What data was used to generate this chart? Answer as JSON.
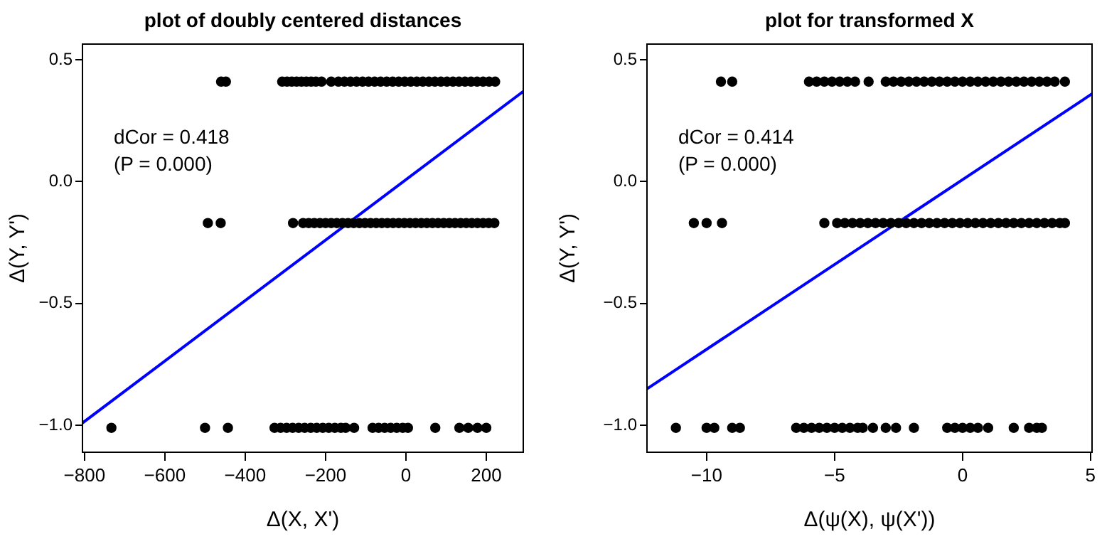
{
  "chart_data": [
    {
      "type": "scatter",
      "title": "plot of doubly centered distances",
      "xlabel": "Δ(X, X')",
      "ylabel": "Δ(Y, Y')",
      "marker": "circle",
      "annotations": [
        "dCor = 0.418",
        "(P = 0.000)"
      ],
      "xlim": [
        -805,
        292
      ],
      "ylim": [
        -1.11,
        0.564
      ],
      "xticks": [
        {
          "value": -800,
          "label": "−800"
        },
        {
          "value": -600,
          "label": "−600"
        },
        {
          "value": -400,
          "label": "−400"
        },
        {
          "value": -200,
          "label": "−200"
        },
        0,
        200
      ],
      "yticks": [
        {
          "value": -1,
          "label": "−1.0"
        },
        {
          "value": -0.5,
          "label": "−0.5"
        },
        {
          "value": 0,
          "label": "0.0"
        },
        0.5
      ],
      "series": [
        {
          "color": "#000000",
          "x": [
            -460,
            -448,
            -308,
            -296,
            -284,
            -272,
            -260,
            -248,
            -236,
            -224,
            -210,
            -186,
            -168,
            -153,
            -138,
            -123,
            -108,
            -93,
            -78,
            -63,
            -48,
            -33,
            -18,
            -3,
            12,
            27,
            42,
            57,
            72,
            87,
            102,
            117,
            132,
            147,
            162,
            177,
            192,
            207,
            222
          ],
          "values": [
            0.41,
            0.41,
            0.41,
            0.41,
            0.41,
            0.41,
            0.41,
            0.41,
            0.41,
            0.41,
            0.41,
            0.41,
            0.41,
            0.41,
            0.41,
            0.41,
            0.41,
            0.41,
            0.41,
            0.41,
            0.41,
            0.41,
            0.41,
            0.41,
            0.41,
            0.41,
            0.41,
            0.41,
            0.41,
            0.41,
            0.41,
            0.41,
            0.41,
            0.41,
            0.41,
            0.41,
            0.41,
            0.41,
            0.41
          ]
        },
        {
          "color": "#000000",
          "x": [
            -493,
            -461,
            -281,
            -256,
            -242,
            -228,
            -214,
            -200,
            -186,
            -172,
            -158,
            -144,
            -130,
            -116,
            -102,
            -88,
            -74,
            -60,
            -46,
            -32,
            -18,
            -4,
            10,
            24,
            38,
            52,
            66,
            80,
            94,
            108,
            122,
            136,
            150,
            164,
            178,
            192,
            206,
            220
          ],
          "values": [
            -0.17,
            -0.17,
            -0.17,
            -0.17,
            -0.17,
            -0.17,
            -0.17,
            -0.17,
            -0.17,
            -0.17,
            -0.17,
            -0.17,
            -0.17,
            -0.17,
            -0.17,
            -0.17,
            -0.17,
            -0.17,
            -0.17,
            -0.17,
            -0.17,
            -0.17,
            -0.17,
            -0.17,
            -0.17,
            -0.17,
            -0.17,
            -0.17,
            -0.17,
            -0.17,
            -0.17,
            -0.17,
            -0.17,
            -0.17,
            -0.17,
            -0.17,
            -0.17,
            -0.17
          ]
        },
        {
          "color": "#000000",
          "x": [
            -733,
            -500,
            -443,
            -327,
            -312,
            -297,
            -282,
            -267,
            -252,
            -237,
            -222,
            -207,
            -192,
            -177,
            -162,
            -150,
            -129,
            -83,
            -68,
            -53,
            -38,
            -23,
            -8,
            5,
            73,
            133,
            155,
            178,
            200
          ],
          "values": [
            -1.01,
            -1.01,
            -1.01,
            -1.01,
            -1.01,
            -1.01,
            -1.01,
            -1.01,
            -1.01,
            -1.01,
            -1.01,
            -1.01,
            -1.01,
            -1.01,
            -1.01,
            -1.01,
            -1.01,
            -1.01,
            -1.01,
            -1.01,
            -1.01,
            -1.01,
            -1.01,
            -1.01,
            -1.01,
            -1.01,
            -1.01,
            -1.01,
            -1.01
          ]
        },
        {
          "type": "line",
          "marker": "none",
          "color": "#0000ff",
          "x": [
            -805,
            292
          ],
          "values": [
            -0.99,
            0.37
          ]
        }
      ]
    },
    {
      "type": "scatter",
      "title": "plot for transformed X",
      "xlabel": "Δ(ψ(X), ψ(X'))",
      "ylabel": "Δ(Y, Y')",
      "marker": "circle",
      "annotations": [
        "dCor = 0.414",
        "(P = 0.000)"
      ],
      "xlim": [
        -12.33,
        5.06
      ],
      "ylim": [
        -1.11,
        0.564
      ],
      "xticks": [
        {
          "value": -10,
          "label": "−10"
        },
        {
          "value": -5,
          "label": "−5"
        },
        0,
        5
      ],
      "yticks": [
        {
          "value": -1,
          "label": "−1.0"
        },
        {
          "value": -0.5,
          "label": "−0.5"
        },
        {
          "value": 0,
          "label": "0.0"
        },
        0.5
      ],
      "series": [
        {
          "color": "#000000",
          "x": [
            -9.44,
            -9.0,
            -6.0,
            -5.7,
            -5.4,
            -5.1,
            -4.8,
            -4.5,
            -4.2,
            -3.67,
            -3.0,
            -2.7,
            -2.4,
            -2.1,
            -1.8,
            -1.5,
            -1.2,
            -0.9,
            -0.6,
            -0.3,
            0,
            0.3,
            0.6,
            0.9,
            1.2,
            1.5,
            1.8,
            2.1,
            2.4,
            2.7,
            3.0,
            3.3,
            3.6,
            4.0
          ],
          "values": [
            0.41,
            0.41,
            0.41,
            0.41,
            0.41,
            0.41,
            0.41,
            0.41,
            0.41,
            0.41,
            0.41,
            0.41,
            0.41,
            0.41,
            0.41,
            0.41,
            0.41,
            0.41,
            0.41,
            0.41,
            0.41,
            0.41,
            0.41,
            0.41,
            0.41,
            0.41,
            0.41,
            0.41,
            0.41,
            0.41,
            0.41,
            0.41,
            0.41,
            0.41
          ]
        },
        {
          "color": "#000000",
          "x": [
            -10.5,
            -10.0,
            -9.4,
            -5.4,
            -4.9,
            -4.6,
            -4.3,
            -4.0,
            -3.7,
            -3.4,
            -3.1,
            -2.8,
            -2.5,
            -2.2,
            -1.9,
            -1.6,
            -1.3,
            -1.0,
            -0.7,
            -0.4,
            -0.1,
            0.2,
            0.5,
            0.8,
            1.1,
            1.4,
            1.7,
            2.0,
            2.3,
            2.6,
            2.9,
            3.2,
            3.5,
            3.8,
            4.0
          ],
          "values": [
            -0.17,
            -0.17,
            -0.17,
            -0.17,
            -0.17,
            -0.17,
            -0.17,
            -0.17,
            -0.17,
            -0.17,
            -0.17,
            -0.17,
            -0.17,
            -0.17,
            -0.17,
            -0.17,
            -0.17,
            -0.17,
            -0.17,
            -0.17,
            -0.17,
            -0.17,
            -0.17,
            -0.17,
            -0.17,
            -0.17,
            -0.17,
            -0.17,
            -0.17,
            -0.17,
            -0.17,
            -0.17,
            -0.17,
            -0.17,
            -0.17
          ]
        },
        {
          "color": "#000000",
          "x": [
            -11.2,
            -10.0,
            -9.7,
            -9.0,
            -8.7,
            -6.5,
            -6.2,
            -5.9,
            -5.6,
            -5.3,
            -5.0,
            -4.7,
            -4.4,
            -4.1,
            -3.9,
            -3.5,
            -3.0,
            -2.6,
            -1.9,
            -0.6,
            -0.3,
            0.0,
            0.3,
            0.6,
            1.0,
            2.0,
            2.6,
            2.9,
            3.1
          ],
          "values": [
            -1.01,
            -1.01,
            -1.01,
            -1.01,
            -1.01,
            -1.01,
            -1.01,
            -1.01,
            -1.01,
            -1.01,
            -1.01,
            -1.01,
            -1.01,
            -1.01,
            -1.01,
            -1.01,
            -1.01,
            -1.01,
            -1.01,
            -1.01,
            -1.01,
            -1.01,
            -1.01,
            -1.01,
            -1.01,
            -1.01,
            -1.01,
            -1.01,
            -1.01
          ]
        },
        {
          "type": "line",
          "marker": "none",
          "color": "#0000ff",
          "x": [
            -12.33,
            5.06
          ],
          "values": [
            -0.85,
            0.36
          ]
        }
      ]
    }
  ]
}
